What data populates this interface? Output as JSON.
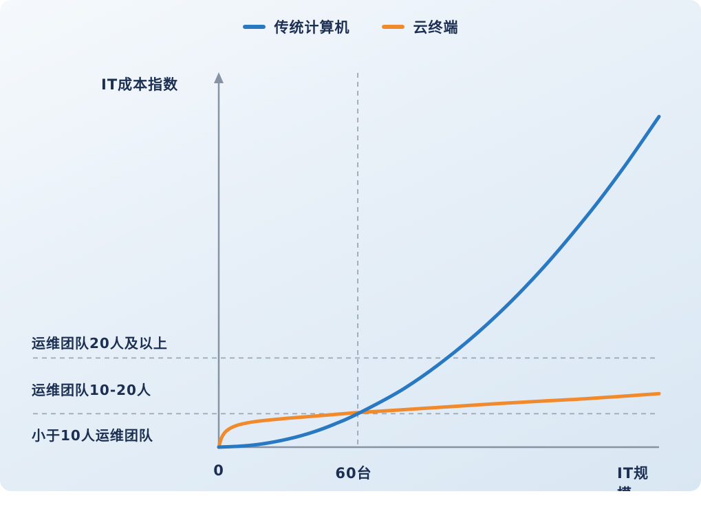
{
  "chart_data": {
    "type": "line",
    "title": "",
    "xlabel": "IT规模",
    "ylabel": "IT成本指数",
    "xlim": [
      0,
      190
    ],
    "ylim": [
      0,
      100
    ],
    "grid": false,
    "legend_position": "top-center",
    "x_ticks": [
      {
        "x": 0,
        "label": "0",
        "dashed_vertical_line": false
      },
      {
        "x": 60,
        "label": "60台",
        "dashed_vertical_line": true
      }
    ],
    "series": [
      {
        "name": "传统计算机",
        "color": "#2878C2",
        "x": [
          0,
          10,
          20,
          30,
          40,
          50,
          60,
          80,
          100,
          120,
          140,
          160,
          175,
          190
        ],
        "y": [
          0,
          0.3,
          1.0,
          2.2,
          3.9,
          6.2,
          9.0,
          15.8,
          24.7,
          35.5,
          48.3,
          63.1,
          75.5,
          89
        ]
      },
      {
        "name": "云终端",
        "color": "#F08A2C",
        "x": [
          0,
          1,
          2,
          3,
          5,
          8,
          12,
          16,
          20,
          30,
          40,
          50,
          60,
          80,
          100,
          120,
          140,
          160,
          190
        ],
        "y": [
          0,
          2.2,
          3.4,
          4.2,
          5.1,
          5.9,
          6.5,
          6.9,
          7.2,
          7.8,
          8.3,
          8.8,
          9.3,
          10.1,
          10.9,
          11.7,
          12.4,
          13.1,
          14.4
        ]
      }
    ],
    "annotations": [
      {
        "label": "运维团队20人及以上",
        "line_y": 24
      },
      {
        "label": "运维团队10-20人",
        "line_y": 9
      },
      {
        "label": "小于10人运维团队",
        "line_y": null
      }
    ]
  },
  "colors": {
    "axis": "#8593A3",
    "dashed_line": "#9AA7B4",
    "text": "#1C2F52",
    "background_start": "#F5F9FC",
    "background_end": "#D9E7F3"
  }
}
